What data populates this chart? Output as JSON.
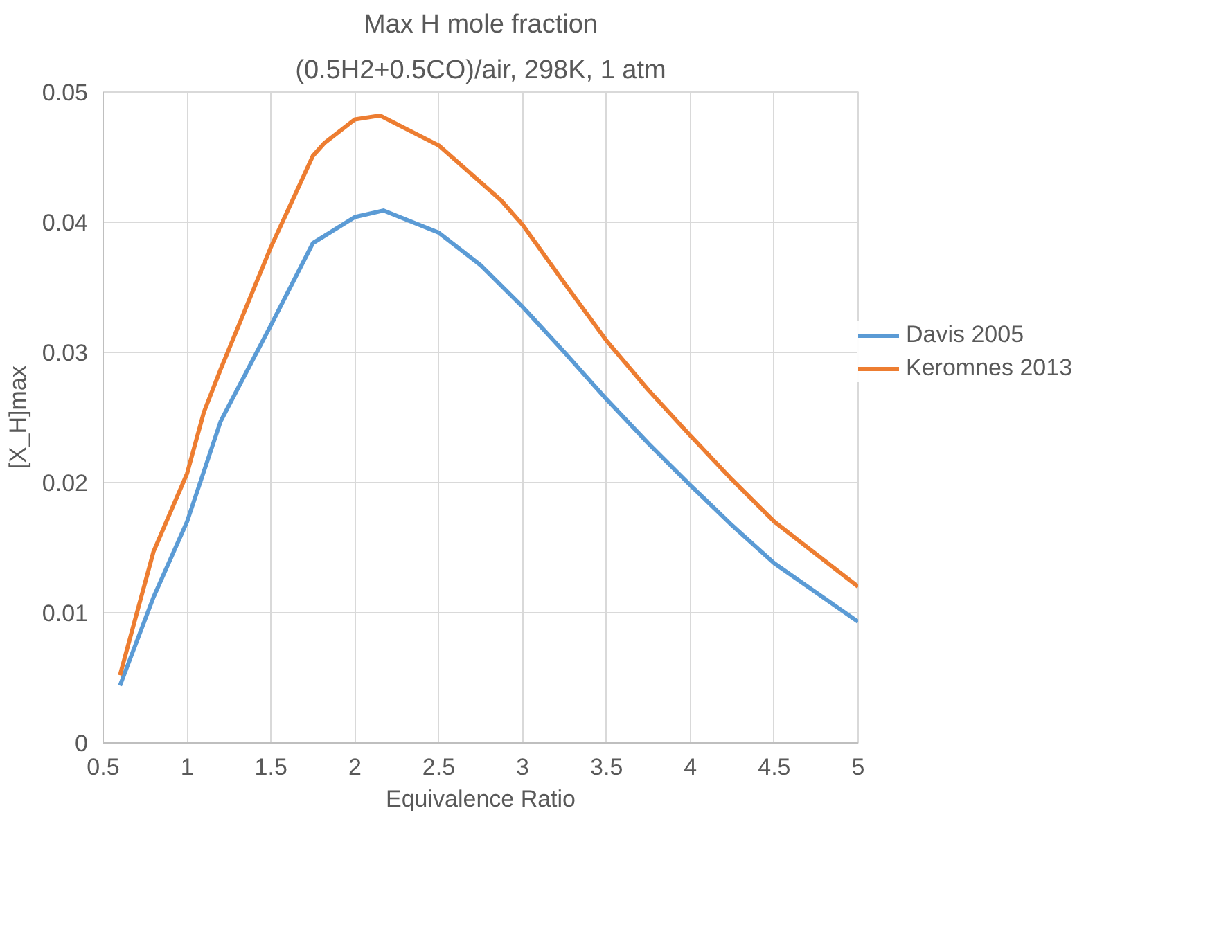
{
  "chart_data": {
    "type": "line",
    "title": "Max H mole fraction",
    "subtitle": "(0.5H2+0.5CO)/air, 298K, 1 atm",
    "xlabel": "Equivalence Ratio",
    "ylabel": "[X_H]max",
    "xlim": [
      0.5,
      5
    ],
    "xticks": [
      0.5,
      1,
      1.5,
      2,
      2.5,
      3,
      3.5,
      4,
      4.5,
      5
    ],
    "ylim": [
      0,
      0.05
    ],
    "yticks": [
      0,
      0.01,
      0.02,
      0.03,
      0.04,
      0.05
    ],
    "grid": true,
    "legend": "right",
    "marker": "none",
    "line_style": "solid",
    "series": [
      {
        "name": "Davis 2005",
        "color": "#5b9bd5",
        "x": [
          0.6,
          0.8,
          1.0,
          1.2,
          1.5,
          1.75,
          2.0,
          2.17,
          2.5,
          2.75,
          3.0,
          3.25,
          3.5,
          3.75,
          4.0,
          4.25,
          4.5,
          5.0
        ],
        "values": [
          0.0044,
          0.0112,
          0.017,
          0.0247,
          0.0321,
          0.0384,
          0.0404,
          0.0409,
          0.0392,
          0.0367,
          0.0335,
          0.03,
          0.0264,
          0.023,
          0.0198,
          0.0167,
          0.0138,
          0.0093
        ]
      },
      {
        "name": "Keromnes 2013",
        "color": "#ed7d31",
        "x": [
          0.6,
          0.8,
          1.0,
          1.1,
          1.2,
          1.5,
          1.75,
          1.82,
          2.0,
          2.15,
          2.5,
          2.87,
          3.0,
          3.25,
          3.5,
          3.75,
          4.0,
          4.25,
          4.5,
          5.0
        ],
        "values": [
          0.0052,
          0.0147,
          0.0207,
          0.0254,
          0.0287,
          0.0381,
          0.0451,
          0.0461,
          0.0479,
          0.0482,
          0.0459,
          0.0417,
          0.0398,
          0.0353,
          0.0309,
          0.0271,
          0.0236,
          0.0202,
          0.017,
          0.012
        ]
      }
    ]
  }
}
